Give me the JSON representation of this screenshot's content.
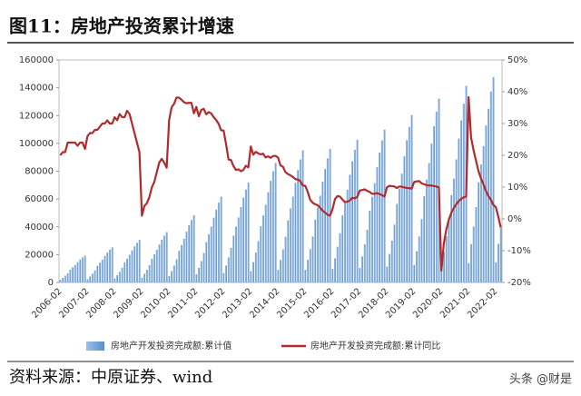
{
  "header": {
    "title": "图11：房地产投资累计增速"
  },
  "chart_data": {
    "type": "bar-line",
    "categories": [
      "2006-02",
      null,
      null,
      null,
      null,
      null,
      null,
      null,
      null,
      null,
      null,
      "2007-02",
      null,
      null,
      null,
      null,
      null,
      null,
      null,
      null,
      null,
      null,
      "2008-02",
      null,
      null,
      null,
      null,
      null,
      null,
      null,
      null,
      null,
      null,
      "2009-02",
      null,
      null,
      null,
      null,
      null,
      null,
      null,
      null,
      null,
      null,
      "2010-02",
      null,
      null,
      null,
      null,
      null,
      null,
      null,
      null,
      null,
      null,
      "2011-02",
      null,
      null,
      null,
      null,
      null,
      null,
      null,
      null,
      null,
      null,
      "2012-02",
      null,
      null,
      null,
      null,
      null,
      null,
      null,
      null,
      null,
      null,
      "2013-02",
      null,
      null,
      null,
      null,
      null,
      null,
      null,
      null,
      null,
      null,
      "2014-02",
      null,
      null,
      null,
      null,
      null,
      null,
      null,
      null,
      null,
      null,
      "2015-02",
      null,
      null,
      null,
      null,
      null,
      null,
      null,
      null,
      null,
      null,
      "2016-02",
      null,
      null,
      null,
      null,
      null,
      null,
      null,
      null,
      null,
      null,
      "2017-02",
      null,
      null,
      null,
      null,
      null,
      null,
      null,
      null,
      null,
      null,
      "2018-02",
      null,
      null,
      null,
      null,
      null,
      null,
      null,
      null,
      null,
      null,
      "2019-02",
      null,
      null,
      null,
      null,
      null,
      null,
      null,
      null,
      null,
      null,
      "2020-02",
      null,
      null,
      null,
      null,
      null,
      null,
      null,
      null,
      null,
      null,
      "2021-02",
      null,
      null,
      null,
      null,
      null,
      null,
      null,
      null,
      null,
      null,
      "2022-02",
      null,
      null
    ],
    "series": [
      {
        "name": "房地产开发投资完成额:累计值",
        "type": "bar",
        "color": "#5b8fcb",
        "values": [
          1800,
          3300,
          4900,
          6700,
          9100,
          10900,
          12600,
          14600,
          16500,
          18000,
          19400,
          2400,
          4300,
          6300,
          8700,
          11900,
          14200,
          16400,
          19100,
          21500,
          23500,
          25300,
          2900,
          5200,
          7700,
          10600,
          14400,
          17100,
          19900,
          23100,
          26000,
          28500,
          30600,
          3400,
          6200,
          9100,
          12500,
          17000,
          20300,
          23500,
          27300,
          30800,
          33700,
          36200,
          4600,
          8200,
          12100,
          16700,
          22700,
          27000,
          31400,
          36500,
          41100,
          44900,
          48300,
          5900,
          10500,
          15400,
          21300,
          29000,
          34600,
          40100,
          46600,
          52400,
          57400,
          61700,
          6800,
          12200,
          18000,
          24800,
          33700,
          40200,
          46700,
          54200,
          61000,
          66800,
          71800,
          8200,
          14600,
          21500,
          29700,
          40400,
          48200,
          55900,
          64900,
          73100,
          80000,
          86000,
          9000,
          16200,
          23800,
          32800,
          44700,
          53200,
          61800,
          71700,
          80800,
          88400,
          95000,
          9100,
          16300,
          24000,
          33100,
          45100,
          53800,
          62400,
          72500,
          81600,
          89300,
          96000,
          9700,
          17400,
          25700,
          35400,
          48200,
          57500,
          66700,
          77500,
          87200,
          95400,
          102600,
          10400,
          18700,
          27500,
          37900,
          51600,
          61500,
          71400,
          82900,
          93300,
          102100,
          109800,
          11400,
          20500,
          30100,
          41500,
          56500,
          67400,
          78200,
          90800,
          102300,
          111900,
          120300,
          12600,
          22500,
          33100,
          45600,
          62100,
          74000,
          85900,
          99800,
          112400,
          122900,
          132200,
          10100,
          22000,
          33100,
          45900,
          62800,
          74700,
          88500,
          103500,
          116600,
          128500,
          141400,
          13900,
          27600,
          40200,
          54300,
          72100,
          84900,
          98000,
          112900,
          124900,
          137300,
          147600,
          14500,
          27800,
          39200
        ]
      },
      {
        "name": "房地产开发投资完成额:累计同比",
        "type": "line",
        "axis": "y2",
        "color": "#b22a2e",
        "values": [
          20,
          21,
          21,
          24,
          24,
          24,
          24,
          23,
          24,
          24,
          22,
          26,
          27,
          27,
          28,
          28,
          29,
          30,
          30,
          31,
          30,
          30,
          32,
          31,
          33,
          32,
          32,
          34,
          33,
          30,
          27,
          24,
          21,
          1,
          4.1,
          4.9,
          6.8,
          9.9,
          11.6,
          14.7,
          17.7,
          18.9,
          17.7,
          16.1,
          31.1,
          35.1,
          36.2,
          38.2,
          38.1,
          37.5,
          36.7,
          36.4,
          36.5,
          36.5,
          33.2,
          35.2,
          32.3,
          34.3,
          34.6,
          32.9,
          33.6,
          33.2,
          32,
          31.1,
          29.9,
          27.9,
          27.8,
          23.5,
          18.7,
          18.5,
          16.6,
          15.4,
          15.6,
          15,
          15.4,
          16.7,
          16.2,
          22.8,
          20.2,
          21.1,
          20.6,
          20.3,
          20.5,
          19.3,
          19.7,
          19.2,
          19.8,
          19.8,
          19.3,
          16.8,
          16.4,
          14.7,
          14.1,
          13.7,
          13.2,
          12.5,
          12.4,
          11.9,
          10.5,
          10.4,
          8.5,
          6,
          5.1,
          4.6,
          4.3,
          3.5,
          2.6,
          2,
          1.3,
          1,
          3,
          6.2,
          7.2,
          7,
          6.1,
          5.3,
          5.4,
          5.8,
          6.6,
          6.5,
          6.9,
          8.9,
          9.1,
          9.3,
          8.8,
          8.5,
          7.9,
          7.9,
          8.1,
          7.8,
          7.5,
          7,
          9.9,
          10.4,
          10.3,
          10.2,
          9.7,
          10.2,
          10.1,
          9.9,
          9.7,
          9.7,
          9.5,
          11.6,
          11.8,
          11.9,
          11.2,
          10.9,
          10.6,
          10.5,
          10.5,
          10.3,
          10.2,
          9.9,
          -16.3,
          -7.7,
          -3.3,
          -0.3,
          1.9,
          3.4,
          4.6,
          5.6,
          6.3,
          6.8,
          7,
          38.3,
          25.6,
          21.6,
          18.3,
          15,
          12.7,
          10.9,
          8.8,
          7.2,
          6,
          4.4,
          3.7,
          0.7,
          -2.7
        ]
      }
    ],
    "ylim": [
      0,
      160000
    ],
    "yticks": [
      0,
      20000,
      40000,
      60000,
      80000,
      100000,
      120000,
      140000,
      160000
    ],
    "y2lim": [
      -20,
      50
    ],
    "y2ticks": [
      {
        "value": -20,
        "label": "-20%"
      },
      {
        "value": -10,
        "label": "-10%"
      },
      {
        "value": 0,
        "label": "0%"
      },
      {
        "value": 10,
        "label": "10%"
      },
      {
        "value": 20,
        "label": "20%"
      },
      {
        "value": 30,
        "label": "30%"
      },
      {
        "value": 40,
        "label": "40%"
      },
      {
        "value": 50,
        "label": "50%"
      }
    ]
  },
  "footer": {
    "source": "资料来源：中原证券、wind",
    "watermark": "头条 @财是"
  }
}
